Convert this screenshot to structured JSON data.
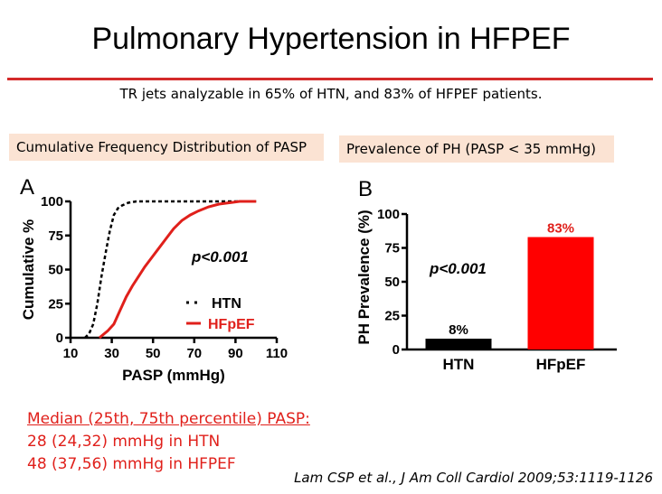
{
  "title": "Pulmonary Hypertension in HFPEF",
  "subtitle": "TR jets analyzable in 65% of HTN, and 83% of HFPEF patients.",
  "panel_a_header": "Cumulative Frequency Distribution of PASP",
  "panel_b_header": "Prevalence of PH (PASP < 35 mmHg)",
  "median": {
    "heading": "Median (25th, 75th percentile) PASP:",
    "line1": "28 (24,32) mmHg in HTN",
    "line2": "48 (37,56) mmHg in HFPEF"
  },
  "citation": "Lam CSP et al., J Am Coll Cardiol 2009;53:1119-1126",
  "colors": {
    "accent_red": "#e0201b",
    "header_bg": "#fbe3d3"
  },
  "chart_data": [
    {
      "type": "line",
      "panel_letter": "A",
      "xlabel": "PASP (mmHg)",
      "ylabel": "Cumulative %",
      "xlim": [
        10,
        110
      ],
      "ylim": [
        0,
        100
      ],
      "x_ticks": [
        "10",
        "30",
        "50",
        "70",
        "90",
        "110"
      ],
      "y_ticks": [
        "0",
        "25",
        "50",
        "75",
        "100"
      ],
      "annotation": "p<0.001",
      "legend_position": "center-right",
      "series": [
        {
          "name": "HTN",
          "style": "dotted",
          "color": "#000000",
          "x": [
            17,
            19,
            21,
            23,
            25,
            27,
            29,
            31,
            33,
            35,
            38,
            42,
            50,
            100
          ],
          "y": [
            0,
            3,
            10,
            25,
            45,
            62,
            78,
            90,
            95,
            97,
            99,
            100,
            100,
            100
          ]
        },
        {
          "name": "HFpEF",
          "style": "solid",
          "color": "#e0201b",
          "x": [
            24,
            28,
            31,
            34,
            37,
            40,
            43,
            46,
            50,
            53,
            56,
            60,
            64,
            68,
            72,
            77,
            82,
            87,
            92,
            100
          ],
          "y": [
            0,
            5,
            10,
            20,
            30,
            38,
            45,
            52,
            60,
            66,
            72,
            80,
            86,
            90,
            93,
            96,
            98,
            99,
            100,
            100
          ]
        }
      ]
    },
    {
      "type": "bar",
      "panel_letter": "B",
      "ylabel": "PH Prevalence (%)",
      "categories": [
        "HTN",
        "HFpEF"
      ],
      "values": [
        8,
        83
      ],
      "value_labels": [
        "8%",
        "83%"
      ],
      "bar_colors": [
        "#000000",
        "#ff0000"
      ],
      "ylim": [
        0,
        100
      ],
      "y_ticks": [
        "0",
        "25",
        "50",
        "75",
        "100"
      ],
      "annotation": "p<0.001"
    }
  ]
}
